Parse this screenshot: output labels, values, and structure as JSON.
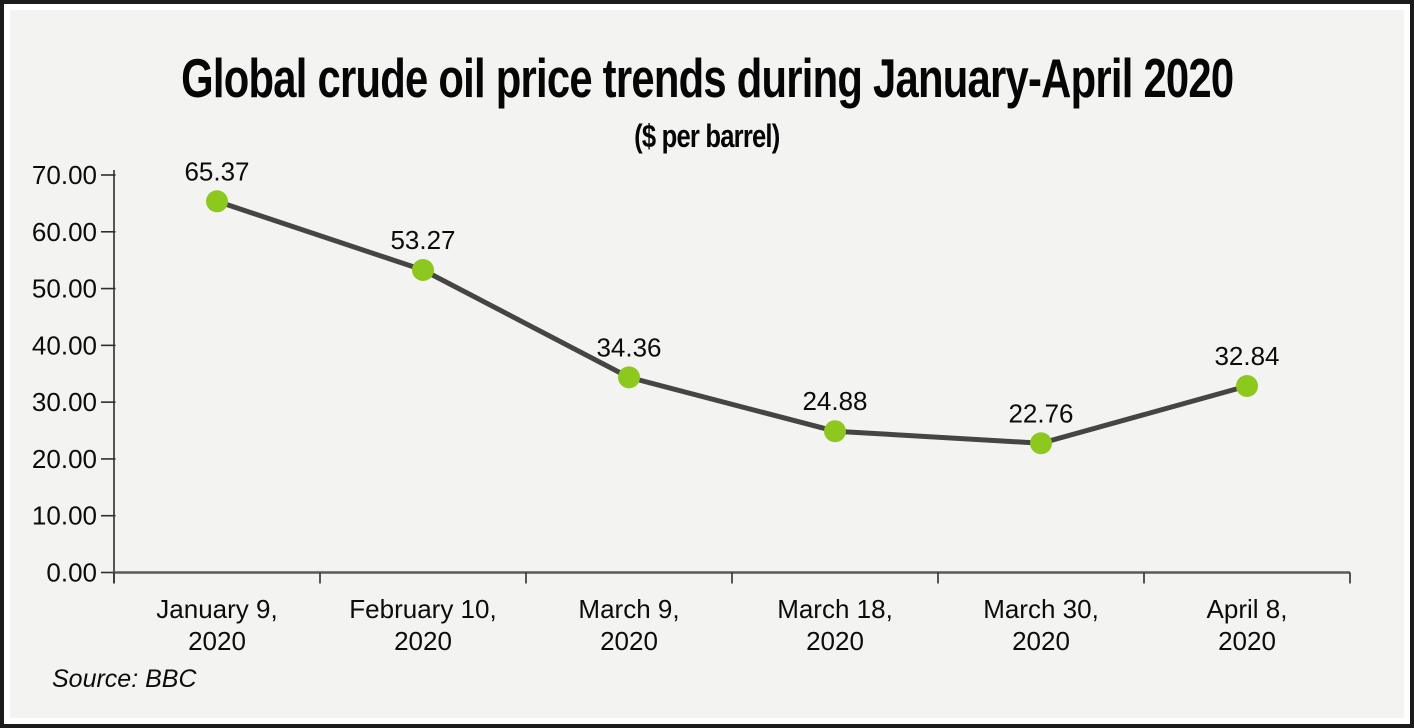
{
  "chart_data": {
    "type": "line",
    "title": "Global crude oil price trends during January-April 2020",
    "subtitle": "($ per barrel)",
    "categories": [
      "January 9, 2020",
      "February 10, 2020",
      "March 9, 2020",
      "March 18, 2020",
      "March 30, 2020",
      "April 8, 2020"
    ],
    "category_label_lines": [
      [
        "January 9,",
        "2020"
      ],
      [
        "February 10,",
        "2020"
      ],
      [
        "March 9,",
        "2020"
      ],
      [
        "March 18,",
        "2020"
      ],
      [
        "March 30,",
        "2020"
      ],
      [
        "April 8,",
        "2020"
      ]
    ],
    "values": [
      65.37,
      53.27,
      34.36,
      24.88,
      22.76,
      32.84
    ],
    "value_labels": [
      "65.37",
      "53.27",
      "34.36",
      "24.88",
      "22.76",
      "32.84"
    ],
    "xlabel": "",
    "ylabel": "",
    "ylim": [
      0,
      70
    ],
    "y_tick_step": 10,
    "y_tick_labels": [
      "0.00",
      "10.00",
      "20.00",
      "30.00",
      "40.00",
      "50.00",
      "60.00",
      "70.00"
    ],
    "grid": false,
    "legend": "none",
    "colors": {
      "marker": "#8dc81e",
      "line": "#454545",
      "axis_x": "#5a5a5a",
      "axis_y": "#2e2e2e",
      "text": "#0c0c0c"
    }
  },
  "source_note": "Source: BBC"
}
